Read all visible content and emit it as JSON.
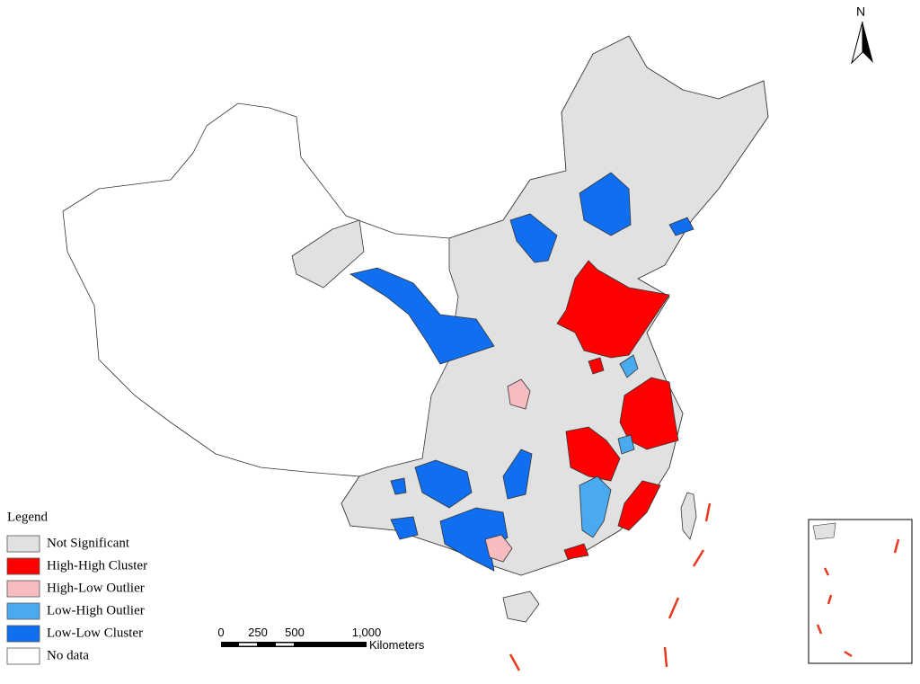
{
  "north_arrow": {
    "label": "N"
  },
  "legend": {
    "title": "Legend",
    "items": [
      {
        "label": "Not Significant",
        "color": "#e1e1e1"
      },
      {
        "label": "High-High Cluster",
        "color": "#ff0000"
      },
      {
        "label": "High-Low Outlier",
        "color": "#f7bcbf"
      },
      {
        "label": "Low-High Outlier",
        "color": "#4aaaf0"
      },
      {
        "label": "Low-Low Cluster",
        "color": "#0f6ff0"
      },
      {
        "label": "No data",
        "color": "#ffffff"
      }
    ]
  },
  "scale_bar": {
    "labels": [
      "0",
      "250",
      "500",
      "1,000"
    ],
    "unit": "Kilometers"
  }
}
